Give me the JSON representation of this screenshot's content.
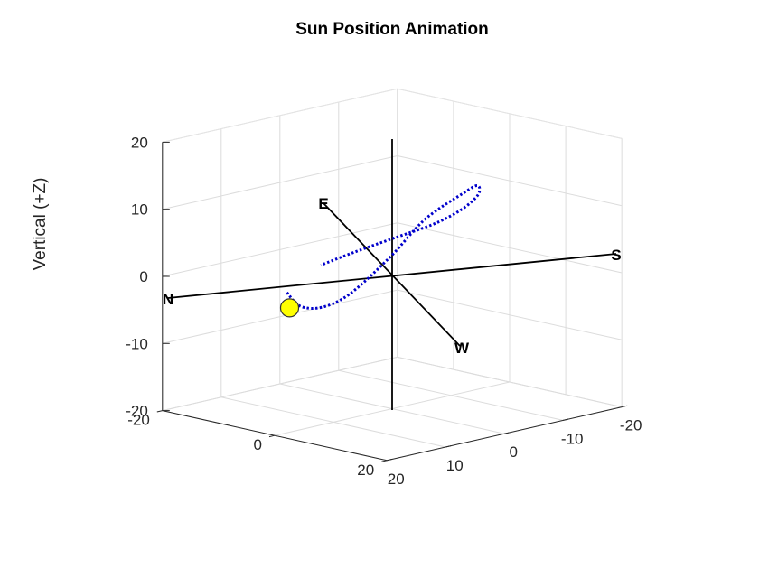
{
  "chart_data": {
    "type": "line",
    "title": "Sun Position Animation",
    "zlabel": "Vertical (+Z)",
    "xlim": [
      -20,
      20
    ],
    "ylim": [
      -20,
      20
    ],
    "zlim": [
      -20,
      20
    ],
    "x_ticks": [
      "20",
      "10",
      "0",
      "-10",
      "-20"
    ],
    "y_ticks": [
      "20",
      "0",
      "-20"
    ],
    "z_ticks": [
      "20",
      "10",
      "0",
      "-10",
      "-20"
    ],
    "grid": true,
    "compass": {
      "north_label": "N",
      "south_label": "S",
      "east_label": "E",
      "west_label": "W"
    },
    "series": [
      {
        "color": "#0000cc",
        "line_style": "dotted",
        "points": [
          [
            5.5,
            -13,
            -4
          ],
          [
            7,
            -9,
            -5
          ],
          [
            8,
            -4,
            -4
          ],
          [
            8,
            1,
            -1
          ],
          [
            6,
            6,
            5
          ],
          [
            3,
            9,
            10.5
          ],
          [
            -1,
            11.5,
            14
          ],
          [
            -4,
            11,
            14.5
          ],
          [
            -7,
            8,
            12
          ],
          [
            -9,
            3,
            8.5
          ],
          [
            -10,
            -3,
            5
          ],
          [
            -9,
            -9,
            2
          ],
          [
            -8,
            -15,
            -1
          ],
          [
            -6.5,
            -19.5,
            -3.5
          ]
        ]
      }
    ],
    "marker": {
      "label": "sun",
      "position": [
        6,
        -12,
        -6
      ],
      "color": "#ffff00"
    }
  }
}
